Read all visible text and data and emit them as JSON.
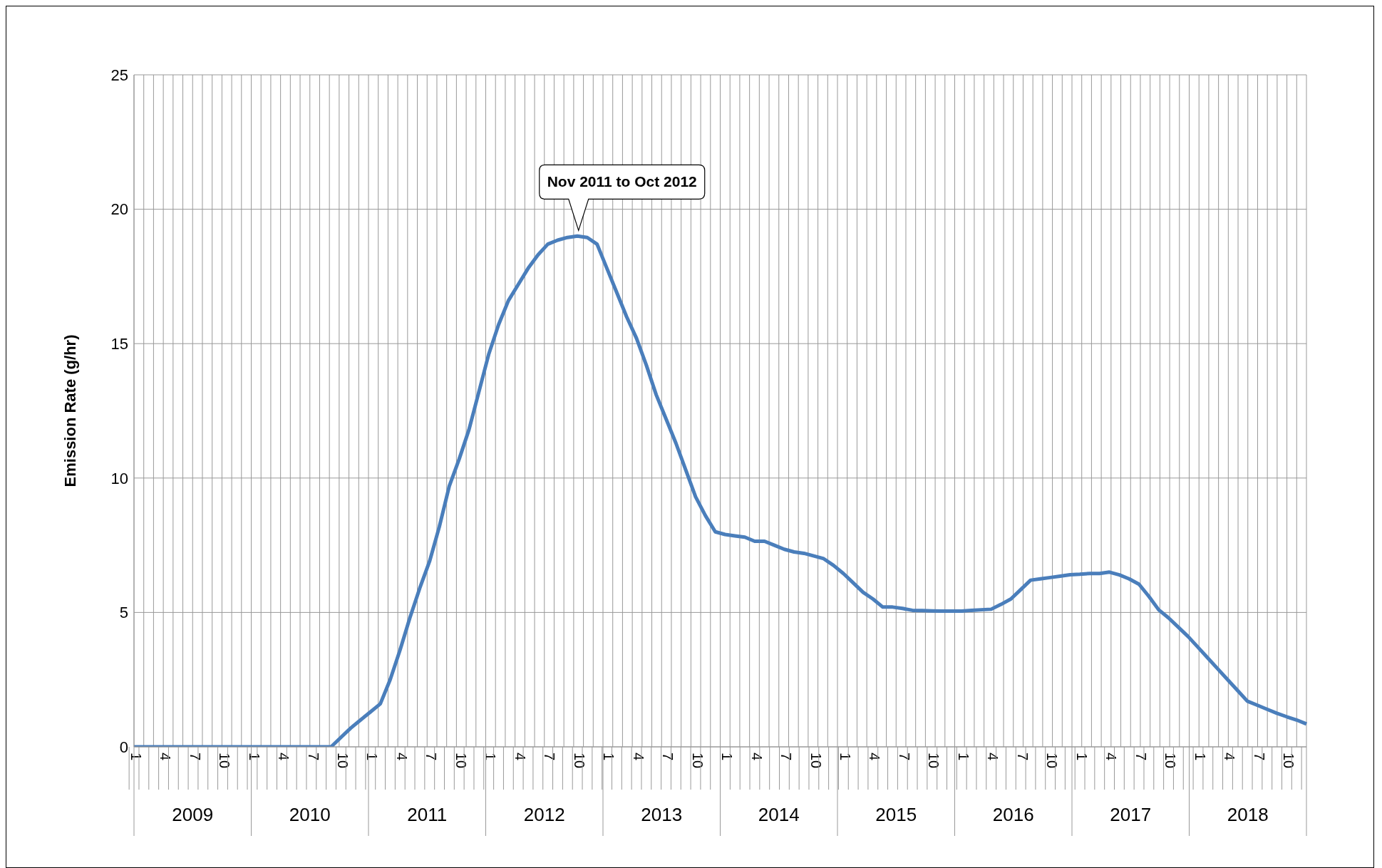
{
  "chart_data": {
    "type": "line",
    "ylabel": "Emission Rate (g/hr)",
    "categories": [
      "1",
      null,
      null,
      "4",
      null,
      null,
      "7",
      null,
      null,
      "10",
      null,
      null,
      "1",
      null,
      null,
      "4",
      null,
      null,
      "7",
      null,
      null,
      "10",
      null,
      null,
      "1",
      null,
      null,
      "4",
      null,
      null,
      "7",
      null,
      null,
      "10",
      null,
      null,
      "1",
      null,
      null,
      "4",
      null,
      null,
      "7",
      null,
      null,
      "10",
      null,
      null,
      "1",
      null,
      null,
      "4",
      null,
      null,
      "7",
      null,
      null,
      "10",
      null,
      null,
      "1",
      null,
      null,
      "4",
      null,
      null,
      "7",
      null,
      null,
      "10",
      null,
      null,
      "1",
      null,
      null,
      "4",
      null,
      null,
      "7",
      null,
      null,
      "10",
      null,
      null,
      "1",
      null,
      null,
      "4",
      null,
      null,
      "7",
      null,
      null,
      "10",
      null,
      null,
      "1",
      null,
      null,
      "4",
      null,
      null,
      "7",
      null,
      null,
      "10",
      null,
      null,
      "1",
      null,
      null,
      "4",
      null,
      null,
      "7",
      null,
      null,
      "10",
      null,
      null
    ],
    "series": [
      {
        "color": "#4a7ebb",
        "values": [
          0,
          0,
          0,
          0,
          0,
          0,
          0,
          0,
          0,
          0,
          0,
          0,
          0,
          0,
          0,
          0,
          0,
          0,
          0,
          0,
          0,
          0.35,
          0.7,
          1.0,
          1.3,
          1.6,
          2.5,
          3.6,
          4.8,
          5.9,
          6.9,
          8.2,
          9.7,
          10.7,
          11.8,
          13.2,
          14.6,
          15.7,
          16.6,
          17.2,
          17.8,
          18.3,
          18.7,
          18.85,
          18.95,
          19.0,
          18.95,
          18.7,
          17.8,
          16.9,
          16.0,
          15.2,
          14.2,
          13.1,
          12.2,
          11.3,
          10.3,
          9.3,
          8.6,
          8.0,
          7.9,
          7.85,
          7.8,
          7.65,
          7.65,
          7.5,
          7.35,
          7.25,
          7.2,
          7.1,
          7.0,
          6.75,
          6.45,
          6.1,
          5.75,
          5.5,
          5.2,
          5.2,
          5.15,
          5.08,
          5.07,
          5.06,
          5.05,
          5.05,
          5.05,
          5.08,
          5.1,
          5.12,
          5.3,
          5.5,
          5.85,
          6.2,
          6.25,
          6.3,
          6.35,
          6.4,
          6.42,
          6.45,
          6.45,
          6.5,
          6.4,
          6.25,
          6.05,
          5.6,
          5.1,
          4.8,
          4.45,
          4.1,
          3.7,
          3.3,
          2.9,
          2.5,
          2.1,
          1.7,
          1.55,
          1.4,
          1.25,
          1.12,
          1.0,
          0.85
        ]
      }
    ],
    "ylim": [
      0,
      25
    ],
    "yticks": [
      0,
      5,
      10,
      15,
      20,
      25
    ],
    "grid": true,
    "legend": false,
    "marker": "none",
    "line_style": "solid",
    "annotations": [
      "Nov 2011 to Oct 2012",
      "2009",
      "2010",
      "2011",
      "2012",
      "2013",
      "2014",
      "2015",
      "2016",
      "2017",
      "2018"
    ]
  }
}
